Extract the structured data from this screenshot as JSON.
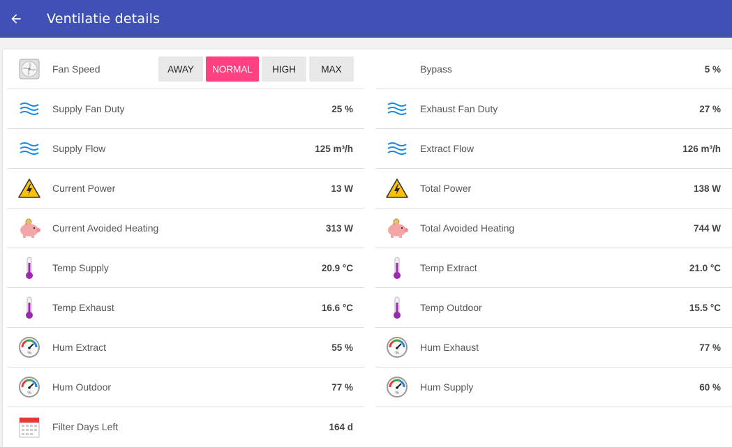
{
  "header": {
    "title": "Ventilatie details"
  },
  "fan_speed": {
    "label": "Fan Speed",
    "modes": [
      "AWAY",
      "NORMAL",
      "HIGH",
      "MAX"
    ],
    "selected": "NORMAL",
    "accent_color": "#ff4081"
  },
  "left": [
    {
      "label": "Supply Fan Duty",
      "value": "25 %",
      "icon": "waves-icon"
    },
    {
      "label": "Supply Flow",
      "value": "125 m³/h",
      "icon": "waves-icon"
    },
    {
      "label": "Current Power",
      "value": "13 W",
      "icon": "high-voltage-icon"
    },
    {
      "label": "Current Avoided Heating",
      "value": "313 W",
      "icon": "piggy-bank-icon"
    },
    {
      "label": "Temp Supply",
      "value": "20.9 °C",
      "icon": "thermometer-icon"
    },
    {
      "label": "Temp Exhaust",
      "value": "16.6 °C",
      "icon": "thermometer-icon"
    },
    {
      "label": "Hum Extract",
      "value": "55 %",
      "icon": "hygrometer-icon"
    },
    {
      "label": "Hum Outdoor",
      "value": "77 %",
      "icon": "hygrometer-icon"
    },
    {
      "label": "Filter Days Left",
      "value": "164 d",
      "icon": "calendar-icon"
    }
  ],
  "right": [
    {
      "label": "Bypass",
      "value": "5 %"
    },
    {
      "label": "Exhaust Fan Duty",
      "value": "27 %",
      "icon": "waves-icon"
    },
    {
      "label": "Extract Flow",
      "value": "126 m³/h",
      "icon": "waves-icon"
    },
    {
      "label": "Total Power",
      "value": "138 W",
      "icon": "high-voltage-icon"
    },
    {
      "label": "Total Avoided Heating",
      "value": "744 W",
      "icon": "piggy-bank-icon"
    },
    {
      "label": "Temp Extract",
      "value": "21.0 °C",
      "icon": "thermometer-icon"
    },
    {
      "label": "Temp Outdoor",
      "value": "15.5 °C",
      "icon": "thermometer-icon"
    },
    {
      "label": "Hum Exhaust",
      "value": "77 %",
      "icon": "hygrometer-icon"
    },
    {
      "label": "Hum Supply",
      "value": "60 %",
      "icon": "hygrometer-icon"
    }
  ],
  "colors": {
    "header_bg": "#3f51b5",
    "waves": "#1e88e5",
    "thermometer": "#9c27b0",
    "warning": "#ffc107",
    "piggy": "#f4a6a6"
  }
}
